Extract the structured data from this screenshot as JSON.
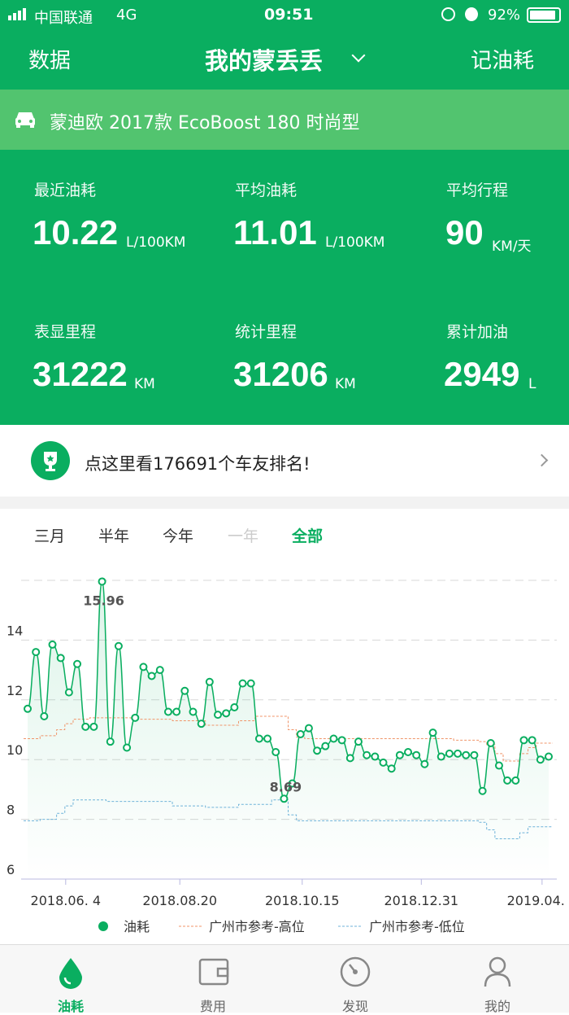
{
  "status_bar": {
    "carrier": "中国联通",
    "network": "4G",
    "time": "09:51",
    "battery": "92%"
  },
  "header": {
    "left": "数据",
    "title": "我的蒙丢丢",
    "right": "记油耗"
  },
  "car": {
    "model": "蒙迪欧 2017款 EcoBoost 180 时尚型"
  },
  "stats": [
    {
      "label": "最近油耗",
      "value": "10.22",
      "unit": "L/100KM"
    },
    {
      "label": "平均油耗",
      "value": "11.01",
      "unit": "L/100KM"
    },
    {
      "label": "平均行程",
      "value": "90",
      "unit": "KM/天"
    },
    {
      "label": "表显里程",
      "value": "31222",
      "unit": "KM"
    },
    {
      "label": "统计里程",
      "value": "31206",
      "unit": "KM"
    },
    {
      "label": "累计加油",
      "value": "2949",
      "unit": "L"
    }
  ],
  "ranking": {
    "text": "点这里看176691个车友排名!"
  },
  "filters": {
    "items": [
      "三月",
      "半年",
      "今年",
      "一年",
      "全部"
    ],
    "active": "全部",
    "disabled": "一年"
  },
  "chart_data": {
    "type": "line",
    "ylim": [
      6,
      16
    ],
    "yticks": [
      "6",
      "8",
      "10",
      "12",
      "14"
    ],
    "grid": true,
    "legend_position": "bottom",
    "xtick_labels": [
      {
        "label": "2018.06. 4",
        "index": 4.6
      },
      {
        "label": "2018.08.20",
        "index": 18.4
      },
      {
        "label": "2018.10.15",
        "index": 33.2
      },
      {
        "label": "2018.12.31",
        "index": 47.6
      },
      {
        "label": "2019.04. 8",
        "index": 62.2
      }
    ],
    "annotations": [
      {
        "index": 9,
        "text": "15.96"
      },
      {
        "index": 31,
        "text": "8.69"
      }
    ],
    "series": [
      {
        "name": "油耗",
        "color": "#0aae60",
        "values": [
          11.7,
          13.6,
          11.45,
          13.85,
          13.4,
          12.25,
          13.2,
          11.1,
          11.1,
          15.96,
          10.6,
          13.8,
          10.4,
          11.4,
          13.1,
          12.8,
          13.0,
          11.6,
          11.6,
          12.3,
          11.6,
          11.2,
          12.6,
          11.5,
          11.55,
          11.75,
          12.55,
          12.55,
          10.7,
          10.7,
          10.25,
          8.69,
          9.2,
          10.85,
          11.05,
          10.3,
          10.45,
          10.7,
          10.65,
          10.05,
          10.6,
          10.15,
          10.1,
          9.9,
          9.7,
          10.15,
          10.25,
          10.15,
          9.85,
          10.9,
          10.1,
          10.2,
          10.2,
          10.15,
          10.15,
          8.95,
          10.55,
          9.8,
          9.3,
          9.3,
          10.65,
          10.65,
          10.0,
          10.1
        ]
      },
      {
        "name": "广州市参考-高位",
        "color": "#f0956a",
        "values": [
          10.7,
          10.7,
          10.8,
          10.8,
          11.0,
          11.2,
          11.35,
          11.35,
          11.4,
          11.4,
          11.4,
          11.4,
          11.4,
          11.35,
          11.35,
          11.35,
          11.35,
          11.35,
          11.3,
          11.3,
          11.3,
          11.3,
          11.15,
          11.15,
          11.15,
          11.15,
          11.3,
          11.3,
          11.45,
          11.45,
          11.45,
          11.45,
          11.0,
          10.75,
          10.7,
          10.7,
          10.7,
          10.7,
          10.7,
          10.7,
          10.7,
          10.7,
          10.7,
          10.7,
          10.7,
          10.7,
          10.7,
          10.7,
          10.7,
          10.7,
          10.7,
          10.7,
          10.65,
          10.65,
          10.65,
          10.6,
          10.5,
          10.2,
          9.95,
          9.95,
          10.2,
          10.4,
          10.55,
          10.55
        ]
      },
      {
        "name": "广州市参考-低位",
        "color": "#6fb3d9",
        "values": [
          7.95,
          7.95,
          8.0,
          8.0,
          8.2,
          8.45,
          8.65,
          8.65,
          8.65,
          8.65,
          8.6,
          8.6,
          8.6,
          8.6,
          8.6,
          8.6,
          8.6,
          8.6,
          8.45,
          8.45,
          8.45,
          8.45,
          8.4,
          8.4,
          8.4,
          8.4,
          8.5,
          8.5,
          8.5,
          8.5,
          8.65,
          8.65,
          8.15,
          7.95,
          7.95,
          7.95,
          7.95,
          7.95,
          7.95,
          7.95,
          7.95,
          7.95,
          7.95,
          7.95,
          7.95,
          7.95,
          7.95,
          7.95,
          7.95,
          7.95,
          7.95,
          7.95,
          7.95,
          7.95,
          7.95,
          7.9,
          7.65,
          7.35,
          7.35,
          7.35,
          7.55,
          7.75,
          7.75,
          7.75
        ]
      }
    ]
  },
  "tabbar": [
    {
      "label": "油耗",
      "active": true
    },
    {
      "label": "费用"
    },
    {
      "label": "发现"
    },
    {
      "label": "我的"
    }
  ],
  "colors": {
    "brand": "#0aae60",
    "carbar": "#52c46f"
  }
}
